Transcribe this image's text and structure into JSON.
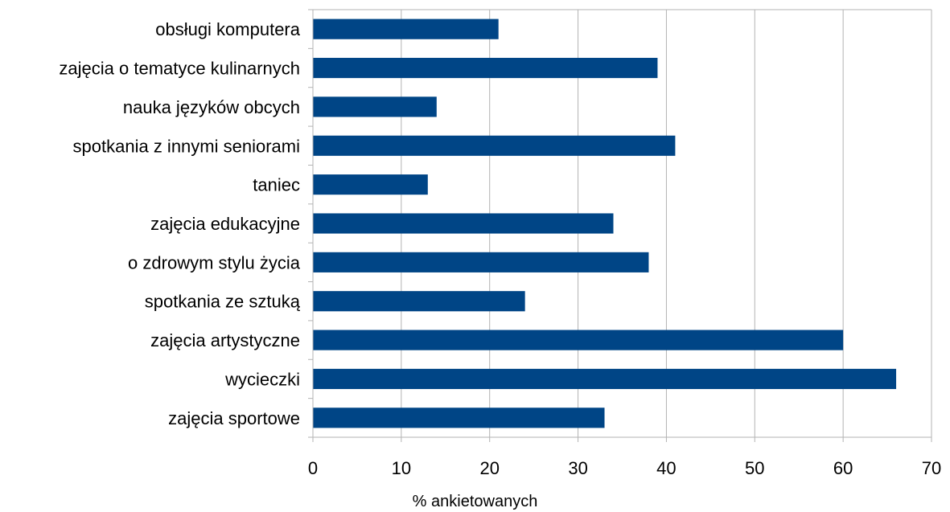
{
  "chart_data": {
    "type": "bar",
    "orientation": "horizontal",
    "categories": [
      "obsługi komputera",
      "zajęcia o tematyce kulinarnych",
      "nauka języków obcych",
      "spotkania z innymi seniorami",
      "taniec",
      "zajęcia edukacyjne",
      "o zdrowym stylu życia",
      "spotkania ze sztuką",
      "zajęcia artystyczne",
      "wycieczki",
      "zajęcia sportowe"
    ],
    "values": [
      21,
      39,
      14,
      41,
      13,
      34,
      38,
      24,
      60,
      66,
      33
    ],
    "xlabel": "% ankietowanych",
    "ylabel": "",
    "xlim": [
      0,
      70
    ],
    "xticks": [
      0,
      10,
      20,
      30,
      40,
      50,
      60,
      70
    ],
    "grid": true,
    "bar_color": "#004586"
  }
}
